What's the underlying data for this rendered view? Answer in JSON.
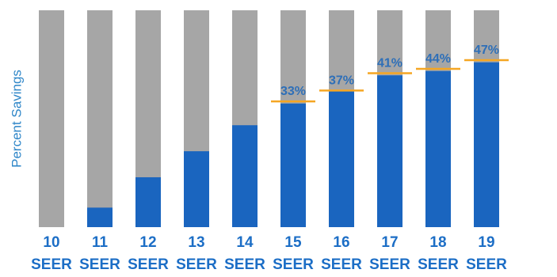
{
  "chart_data": {
    "type": "bar",
    "ylabel": "Percent Savings",
    "xlabel": "",
    "categories": [
      [
        "10",
        "SEER"
      ],
      [
        "11",
        "SEER"
      ],
      [
        "12",
        "SEER"
      ],
      [
        "13",
        "SEER"
      ],
      [
        "14",
        "SEER"
      ],
      [
        "15",
        "SEER"
      ],
      [
        "16",
        "SEER"
      ],
      [
        "17",
        "SEER"
      ],
      [
        "18",
        "SEER"
      ],
      [
        "19",
        "SEER"
      ]
    ],
    "series": [
      {
        "values": [
          0,
          9,
          23,
          35,
          47,
          57,
          63,
          70,
          72,
          76
        ]
      }
    ],
    "data_labels": [
      "",
      "",
      "",
      "",
      "",
      "33%",
      "37%",
      "41%",
      "44%",
      "47%"
    ],
    "marker_values": [
      null,
      null,
      null,
      null,
      null,
      58,
      63,
      71,
      73,
      77
    ],
    "ylim": [
      0,
      100
    ],
    "grid": false,
    "colors": {
      "bar": "#1a65bf",
      "bar_background": "#a6a6a6",
      "marker": "#f5a623",
      "axis_label": "#2e86c8",
      "label": "#2e6fb8",
      "tick_label": "#1c6ec6",
      "background": "#ffffff"
    }
  }
}
